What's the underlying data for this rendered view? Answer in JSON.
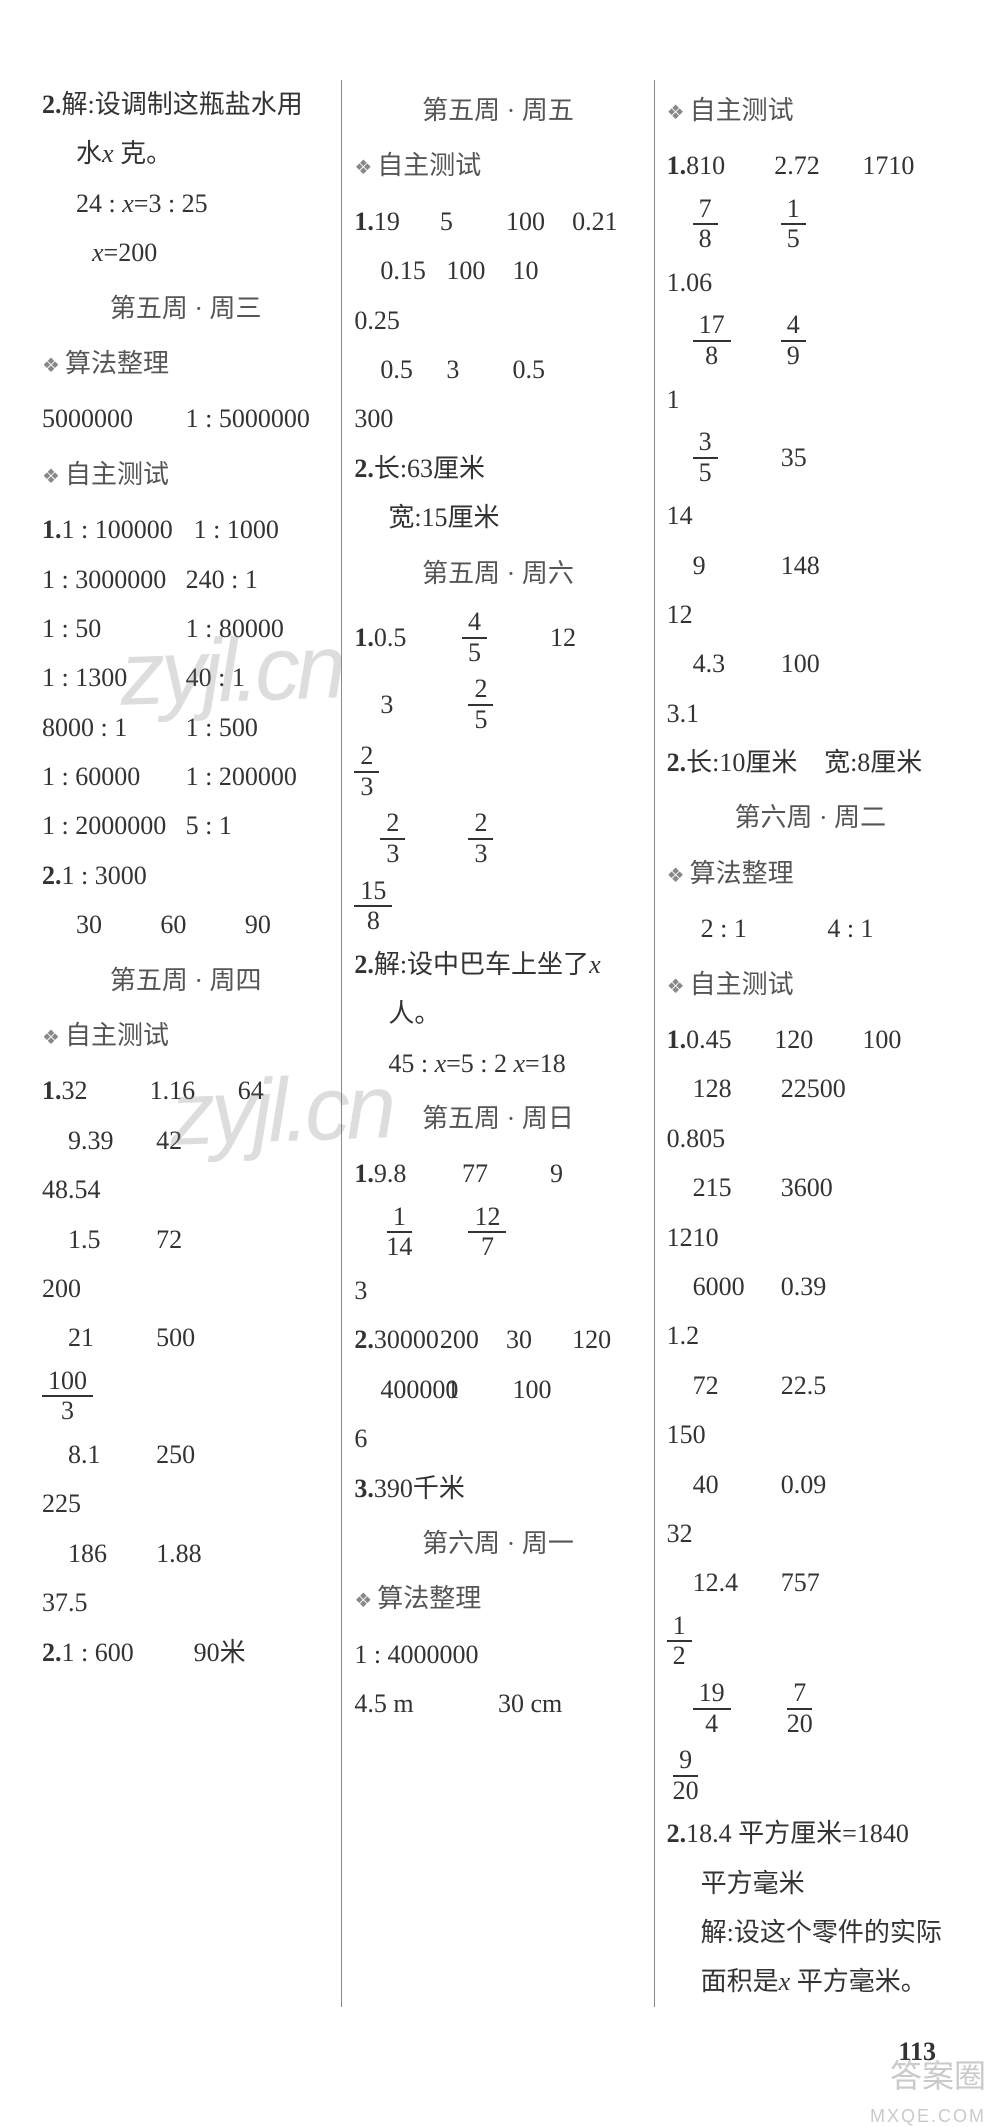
{
  "page_number": "113",
  "watermarks": [
    "zyjl.cn",
    "zyjl.cn"
  ],
  "corner_logo": "答案圈",
  "corner_url": "MXQE.COM",
  "col1": {
    "p2_head": "2.",
    "p2_line1": "解:设调制这瓶盐水用",
    "p2_line2": "水",
    "p2_line2_var": "x",
    "p2_line2_end": " 克。",
    "p2_line3": "24 : ",
    "p2_line3_var": "x",
    "p2_line3b": "=3 : 25",
    "p2_line4_var": "x",
    "p2_line4": "=200",
    "week3_head": "第五周 · 周三",
    "suanfa": "算法整理",
    "suanfa_row": [
      "5000000",
      "1 : 5000000"
    ],
    "zizhu": "自主测试",
    "z1_head": "1.",
    "z1_rows": [
      [
        "1 : 100000",
        "1 : 1000"
      ],
      [
        "1 : 3000000",
        "240 : 1"
      ],
      [
        "1 : 50",
        "1 : 80000"
      ],
      [
        "1 : 1300",
        "40 : 1"
      ],
      [
        "8000 : 1",
        "1 : 500"
      ],
      [
        "1 : 60000",
        "1 : 200000"
      ],
      [
        "1 : 2000000",
        "5 : 1"
      ]
    ],
    "z2_head": "2.",
    "z2_line1": "1 : 3000",
    "z2_row": [
      "30",
      "60",
      "90"
    ],
    "week4_head": "第五周 · 周四",
    "zizhu2": "自主测试",
    "w4_z1_head": "1.",
    "w4_rows": [
      [
        "32",
        "1.16",
        "64"
      ],
      [
        "9.39",
        "42",
        "48.54"
      ],
      [
        "1.5",
        "72",
        "200"
      ],
      [
        "21",
        "500",
        {
          "frac": [
            "100",
            "3"
          ]
        }
      ],
      [
        "8.1",
        "250",
        "225"
      ],
      [
        "186",
        "1.88",
        "37.5"
      ]
    ],
    "w4_z2_head": "2.",
    "w4_z2": [
      "1 : 600",
      "90米"
    ]
  },
  "col2": {
    "week5_head": "第五周 · 周五",
    "zizhu": "自主测试",
    "z1_head": "1.",
    "z1_rows": [
      [
        "19",
        "5",
        "100",
        "0.21"
      ],
      [
        "0.15",
        "100",
        "10",
        "0.25"
      ],
      [
        "0.5",
        "3",
        "0.5",
        "300"
      ]
    ],
    "z2_head": "2.",
    "z2_line1": "长:63厘米",
    "z2_line2": "宽:15厘米",
    "week6_head": "第五周 · 周六",
    "w6_z1_head": "1.",
    "w6_rows": [
      [
        "0.5",
        {
          "frac": [
            "4",
            "5"
          ]
        },
        "12"
      ],
      [
        "3",
        {
          "frac": [
            "2",
            "5"
          ]
        },
        {
          "frac": [
            "2",
            "3"
          ]
        }
      ],
      [
        {
          "frac": [
            "2",
            "3"
          ]
        },
        {
          "frac": [
            "2",
            "3"
          ]
        },
        {
          "frac": [
            "15",
            "8"
          ]
        }
      ]
    ],
    "w6_z2_head": "2.",
    "w6_z2_line1a": "解:设中巴车上坐了",
    "w6_z2_line1_var": "x",
    "w6_z2_line2": "人。",
    "w6_z2_line3a": "45 : ",
    "w6_z2_line3_var1": "x",
    "w6_z2_line3b": "=5 : 2    ",
    "w6_z2_line3_var2": "x",
    "w6_z2_line3c": "=18",
    "week7_head": "第五周 · 周日",
    "w7_z1_head": "1.",
    "w7_rows": [
      [
        "9.8",
        "77",
        "9"
      ],
      [
        {
          "frac": [
            "1",
            "14"
          ]
        },
        {
          "frac": [
            "12",
            "7"
          ]
        },
        "3"
      ]
    ],
    "w7_z2_head": "2.",
    "w7_z2_rows": [
      [
        "30000",
        "200",
        "30",
        "120"
      ],
      [
        "400000",
        "1",
        "100",
        "6"
      ]
    ],
    "w7_z3_head": "3.",
    "w7_z3": "390千米",
    "week_mon_head": "第六周 · 周一",
    "suanfa": "算法整理",
    "suanfa_line": "1 : 4000000",
    "suanfa_row": [
      "4.5 m",
      "30 cm"
    ]
  },
  "col3": {
    "zizhu": "自主测试",
    "z1_head": "1.",
    "z1_rows": [
      [
        "810",
        "2.72",
        "1710"
      ],
      [
        {
          "frac": [
            "7",
            "8"
          ]
        },
        {
          "frac": [
            "1",
            "5"
          ]
        },
        "1.06"
      ],
      [
        {
          "frac": [
            "17",
            "8"
          ]
        },
        {
          "frac": [
            "4",
            "9"
          ]
        },
        "1"
      ],
      [
        {
          "frac": [
            "3",
            "5"
          ]
        },
        "35",
        "14"
      ],
      [
        "9",
        "148",
        "12"
      ],
      [
        "4.3",
        "100",
        "3.1"
      ]
    ],
    "z2_head": "2.",
    "z2": [
      "长:10厘米",
      "宽:8厘米"
    ],
    "week_tue_head": "第六周 · 周二",
    "suanfa": "算法整理",
    "suanfa_row": [
      "2 : 1",
      "4 : 1"
    ],
    "zizhu2": "自主测试",
    "z2_1_head": "1.",
    "z2_rows": [
      [
        "0.45",
        "120",
        "100"
      ],
      [
        "128",
        "22500",
        "0.805"
      ],
      [
        "215",
        "3600",
        "1210"
      ],
      [
        "6000",
        "0.39",
        "1.2"
      ],
      [
        "72",
        "22.5",
        "150"
      ],
      [
        "40",
        "0.09",
        "32"
      ],
      [
        "12.4",
        "757",
        {
          "frac": [
            "1",
            "2"
          ]
        }
      ],
      [
        {
          "frac": [
            "19",
            "4"
          ]
        },
        {
          "frac": [
            "7",
            "20"
          ]
        },
        {
          "frac": [
            "9",
            "20"
          ]
        }
      ]
    ],
    "z2_2_head": "2.",
    "z2_2_line1": "18.4 平方厘米=1840",
    "z2_2_line2": "平方毫米",
    "z2_2_line3": "解:设这个零件的实际",
    "z2_2_line4a": "面积是",
    "z2_2_line4_var": "x",
    "z2_2_line4b": " 平方毫米。"
  }
}
